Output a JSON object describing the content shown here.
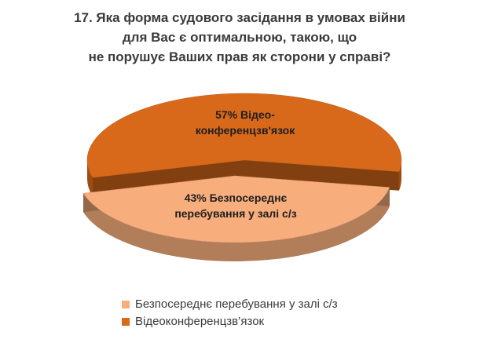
{
  "chart_data": {
    "type": "pie3d",
    "title": [
      "17. Яка форма судового засідання в умовах війни",
      "для Вас є оптимальною,  такою, що",
      "не порушує Ваших прав як сторони у справі?"
    ],
    "categories": [
      "Безпосереднє перебування у залі с/з",
      "Відеоконференцзв’язок"
    ],
    "values": [
      43,
      57
    ],
    "value_labels": [
      "43%  Безпосереднє перебування у залі с/з",
      "57%  Відео-конференцзв'язок"
    ],
    "colors": [
      "#f7ad7c",
      "#d8691b"
    ],
    "legend": "bottom"
  }
}
